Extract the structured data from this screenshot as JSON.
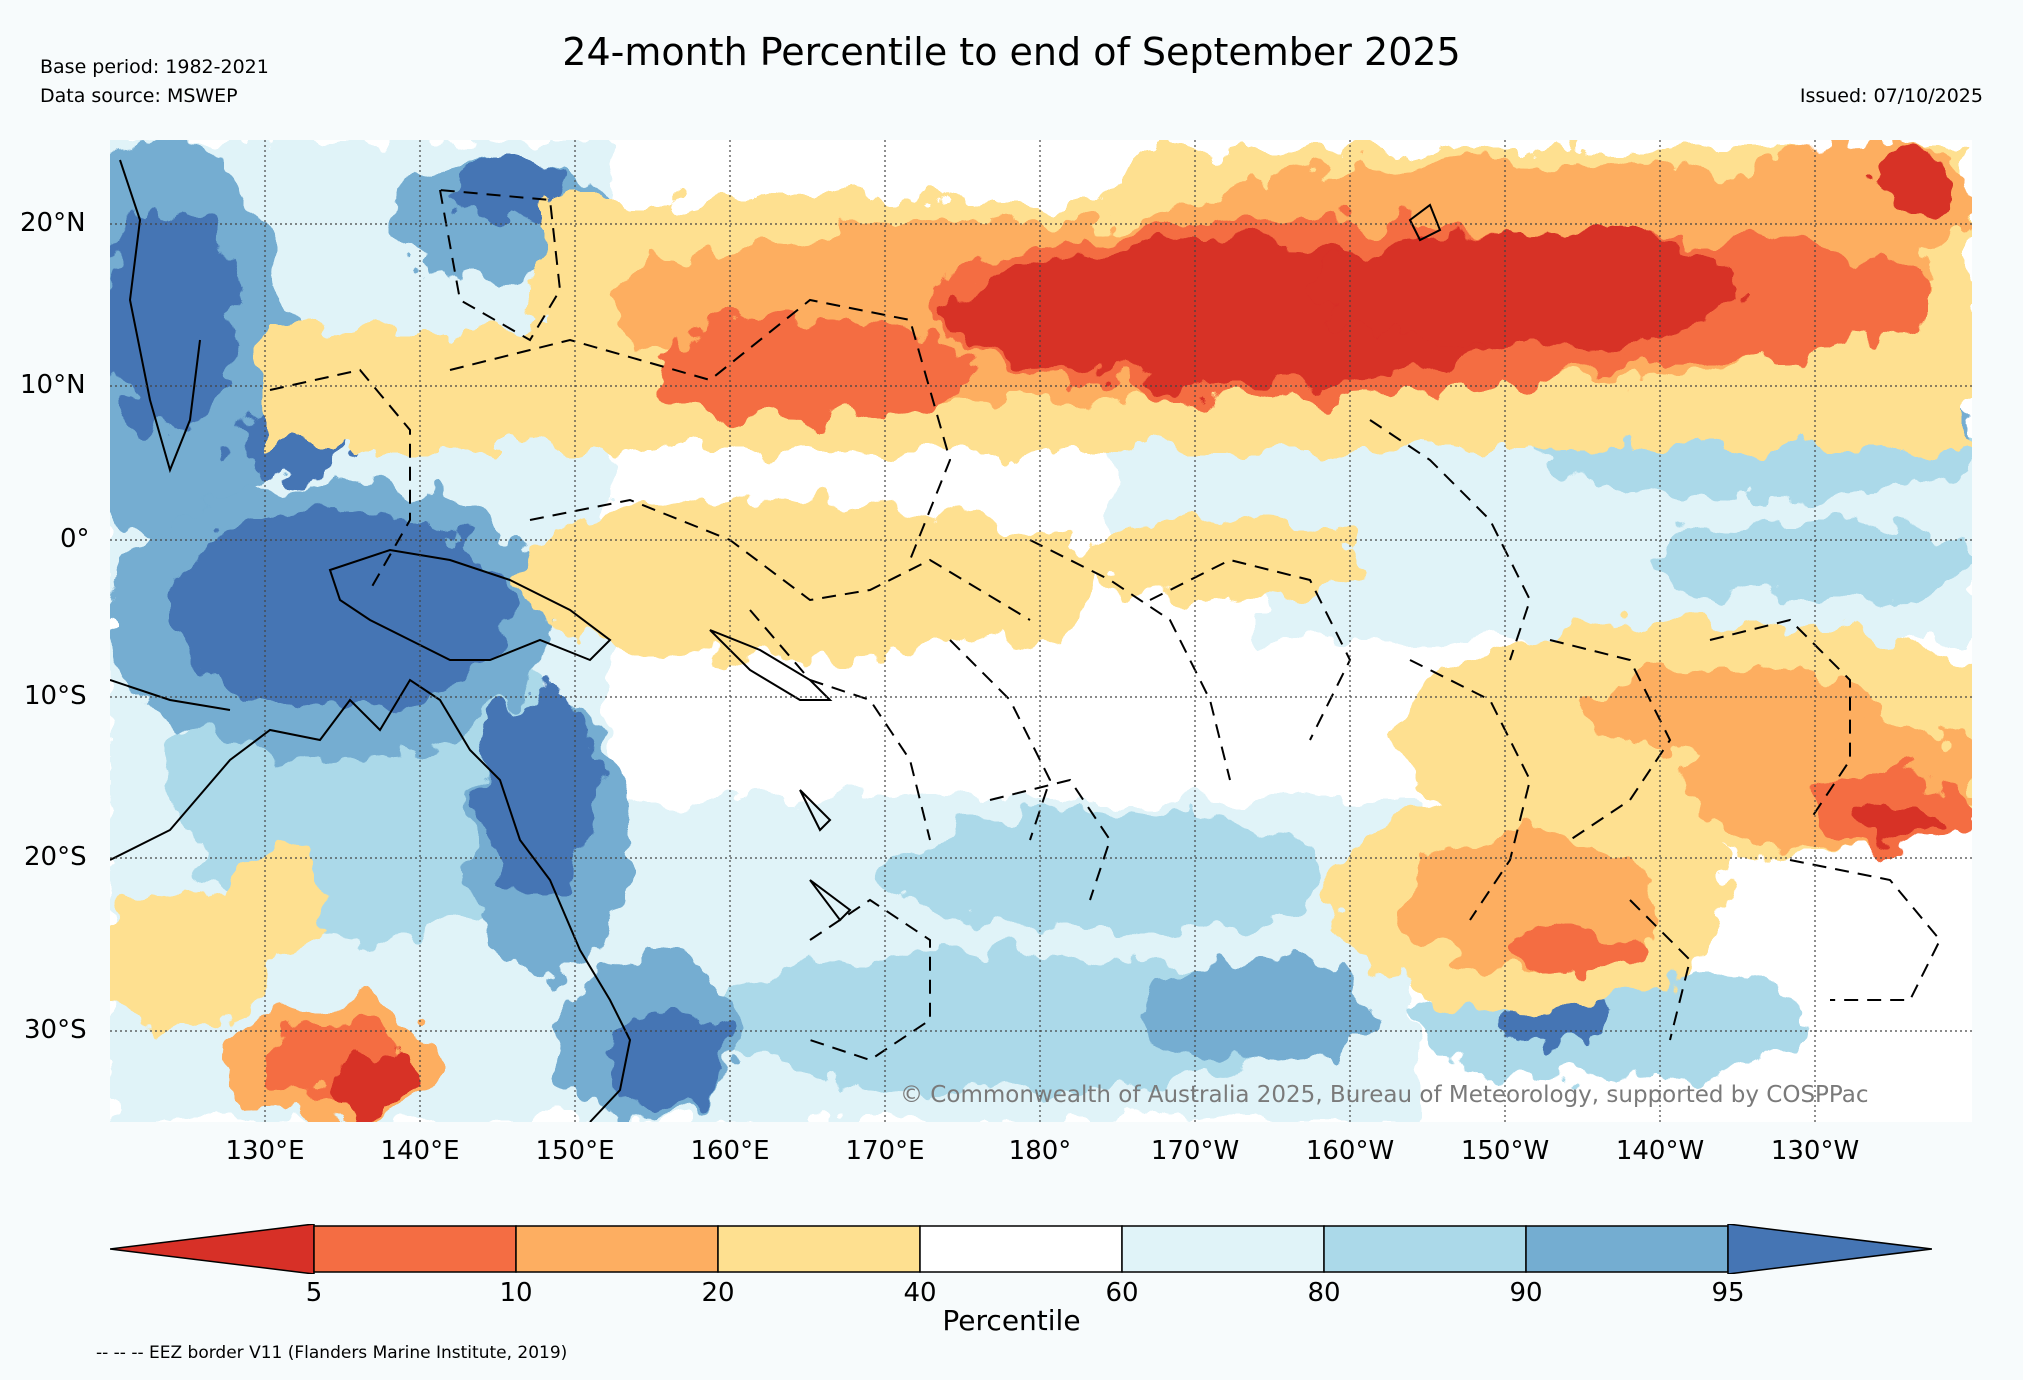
{
  "header": {
    "title": "24-month Percentile to end of September 2025",
    "base_period": "Base period: 1982-2021",
    "data_source": "Data source: MSWEP",
    "issued": "Issued: 07/10/2025"
  },
  "map": {
    "lat_labels": [
      "20°N",
      "10°N",
      "0°",
      "10°S",
      "20°S",
      "30°S"
    ],
    "lon_labels": [
      "130°E",
      "140°E",
      "150°E",
      "160°E",
      "170°E",
      "180°",
      "170°W",
      "160°W",
      "150°W",
      "140°W",
      "130°W"
    ],
    "copyright": "© Commonwealth of Australia 2025, Bureau of Meteorology, supported by COSPPac"
  },
  "colorbar": {
    "label": "Percentile",
    "ticks": [
      "5",
      "10",
      "20",
      "40",
      "60",
      "80",
      "90",
      "95"
    ],
    "colors": [
      "#d73027",
      "#f46d43",
      "#fdae61",
      "#fee090",
      "#ffffff",
      "#e0f3f8",
      "#abd9e9",
      "#74add1",
      "#4575b4"
    ]
  },
  "footer": {
    "eez_note": "-- -- -- EEZ border V11 (Flanders Marine Institute, 2019)"
  }
}
